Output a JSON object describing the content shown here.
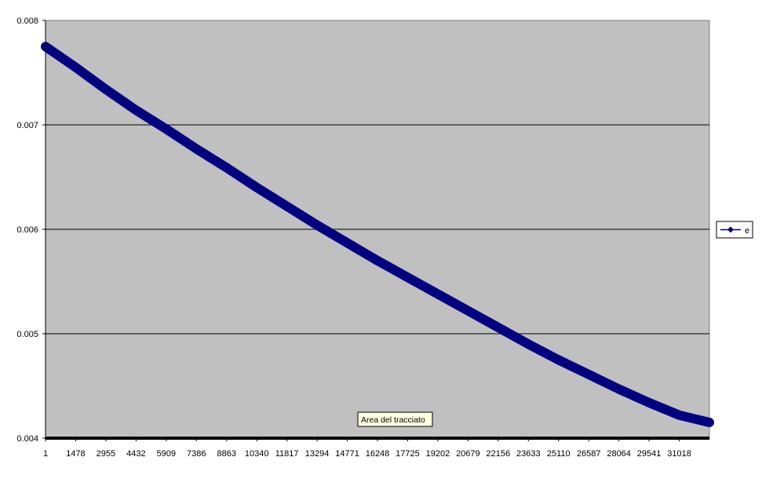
{
  "chart_data": {
    "type": "line",
    "title": "",
    "xlabel": "",
    "ylabel": "",
    "x_tick_labels": [
      "1",
      "1478",
      "2955",
      "4432",
      "5909",
      "7386",
      "8863",
      "10340",
      "11817",
      "13294",
      "14771",
      "16248",
      "17725",
      "19202",
      "20679",
      "22156",
      "23633",
      "25110",
      "26587",
      "28064",
      "29541",
      "31018"
    ],
    "y_tick_labels": [
      "0.004",
      "0.005",
      "0.006",
      "0.007",
      "0.008"
    ],
    "xlim": [
      1,
      32495
    ],
    "ylim": [
      0.004,
      0.008
    ],
    "grid": "horizontal",
    "legend_position": "right",
    "series": [
      {
        "name": "e",
        "color": "#000080",
        "marker": "diamond",
        "x": [
          1,
          1478,
          2955,
          4432,
          5909,
          7386,
          8863,
          10340,
          11817,
          13294,
          14771,
          16248,
          17725,
          19202,
          20679,
          22156,
          23633,
          25110,
          26587,
          28064,
          29541,
          31018,
          32495
        ],
        "values": [
          0.00775,
          0.00755,
          0.00734,
          0.00714,
          0.00696,
          0.00677,
          0.00659,
          0.0064,
          0.00622,
          0.00604,
          0.00587,
          0.0057,
          0.00554,
          0.00538,
          0.00522,
          0.00506,
          0.0049,
          0.00475,
          0.00461,
          0.00447,
          0.00434,
          0.00422,
          0.00415
        ]
      }
    ]
  },
  "tooltip": {
    "text": "Area del tracciato"
  },
  "colors": {
    "plot_bg": "#c0c0c0",
    "gridline": "#000000",
    "axis": "#000000",
    "series": "#000080"
  }
}
